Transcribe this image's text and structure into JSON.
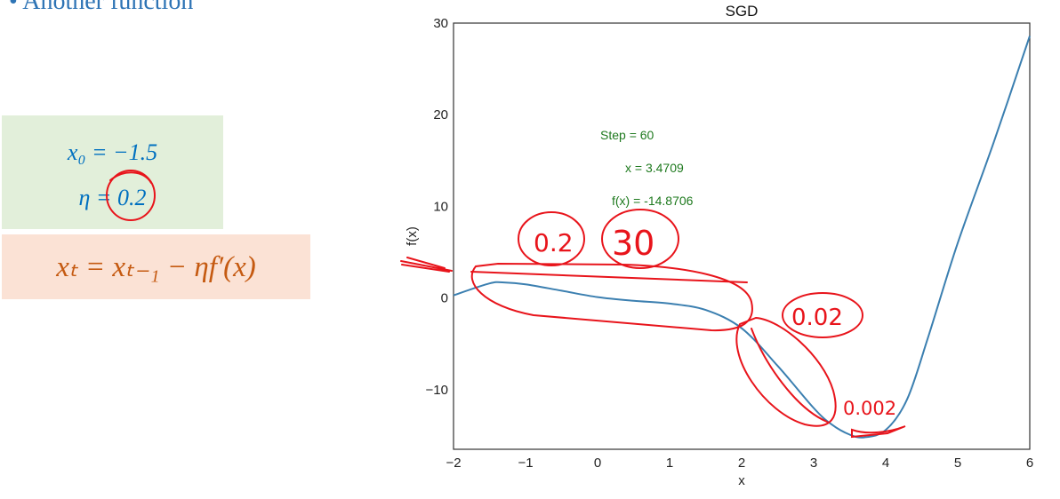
{
  "slide": {
    "heading": "• Another function",
    "params": {
      "x0": "x₀ = −1.5",
      "eta": "η = 0.2"
    },
    "formula": "xₜ = xₜ₋₁ − ηf′(x)",
    "colors": {
      "param_bg": "#e2efda",
      "formula_bg": "#fbe2d5",
      "ink": "#e8141b"
    }
  },
  "chart_data": {
    "type": "line",
    "title": "SGD",
    "xlabel": "x",
    "ylabel": "f(x)",
    "xlim": [
      -2,
      6
    ],
    "ylim": [
      -16.5,
      30
    ],
    "xticks": [
      -2,
      -1,
      0,
      1,
      2,
      3,
      4,
      5,
      6
    ],
    "yticks": [
      -10,
      0,
      10,
      20,
      30
    ],
    "grid": false,
    "series": [
      {
        "color": "#3b7fb0",
        "x": [
          -2.0,
          -1.5,
          -1.3,
          -1.0,
          -0.5,
          0.0,
          0.5,
          1.0,
          1.5,
          2.0,
          2.5,
          3.0,
          3.25,
          3.5,
          3.7,
          4.0,
          4.3,
          4.6,
          5.0,
          5.5,
          6.0
        ],
        "y": [
          0.3,
          1.6,
          1.7,
          1.5,
          0.8,
          0.1,
          -0.3,
          -0.6,
          -1.3,
          -3.3,
          -7.4,
          -12.0,
          -13.8,
          -14.9,
          -15.2,
          -14.4,
          -11.0,
          -4.0,
          6.0,
          17.0,
          28.6
        ]
      }
    ],
    "annotations": [
      "Step = 60",
      "x = 3.4709",
      "f(x) = -14.8706"
    ],
    "handwritten": [
      "0.2",
      "30",
      "0.02",
      "0.002"
    ]
  }
}
